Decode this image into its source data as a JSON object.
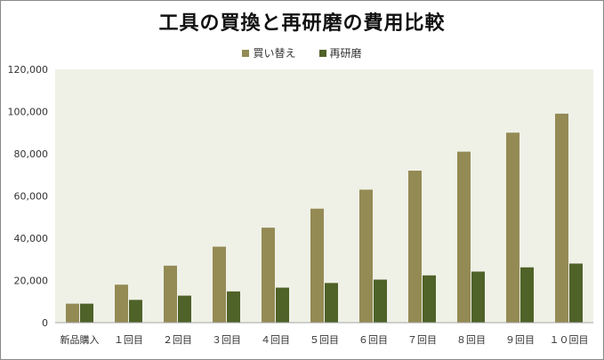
{
  "chart_data": {
    "type": "bar",
    "title": "工具の買換と再研磨の費用比較",
    "xlabel": "",
    "ylabel": "",
    "categories": [
      "新品購入",
      "１回目",
      "２回目",
      "３回目",
      "４回目",
      "５回目",
      "６回目",
      "７回目",
      "８回目",
      "９回目",
      "１０回目"
    ],
    "series": [
      {
        "name": "買い替え",
        "color": "#948a54",
        "values": [
          9000,
          18000,
          27000,
          36000,
          45000,
          54000,
          63000,
          72000,
          81000,
          90000,
          99000
        ]
      },
      {
        "name": "再研磨",
        "color": "#4f6228",
        "values": [
          9000,
          10800,
          12800,
          14800,
          16600,
          18800,
          20400,
          22400,
          24200,
          26200,
          28000
        ]
      }
    ],
    "ylim": [
      0,
      120000
    ],
    "yticks": [
      "0",
      "20,000",
      "40,000",
      "60,000",
      "80,000",
      "100,000",
      "120,000"
    ],
    "ytick_values": [
      0,
      20000,
      40000,
      60000,
      80000,
      100000,
      120000
    ],
    "grid": false,
    "legend_position": "top",
    "plot_background": "#eff1e7"
  }
}
